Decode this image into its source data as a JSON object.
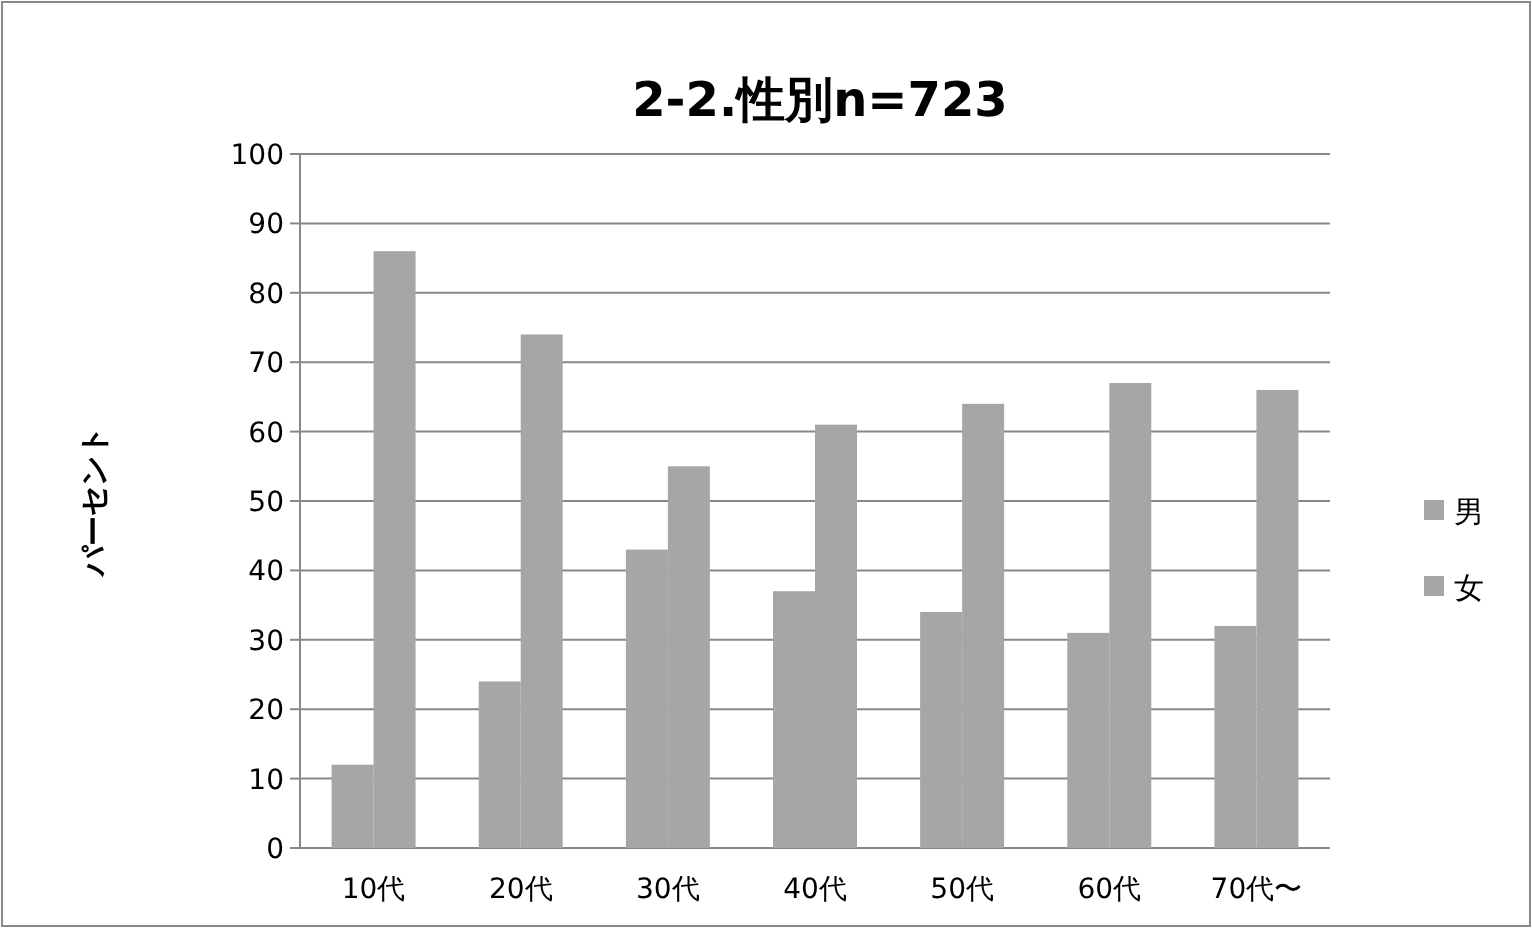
{
  "chart_data": {
    "type": "bar",
    "title": "2-2.性別n=723",
    "ylabel": "パーセント",
    "categories": [
      "10代",
      "20代",
      "30代",
      "40代",
      "50代",
      "60代",
      "70代〜"
    ],
    "series": [
      {
        "name": "男",
        "color": "#a6a6a6",
        "values": [
          12,
          24,
          43,
          37,
          34,
          31,
          32
        ]
      },
      {
        "name": "女",
        "color": "#a6a6a6",
        "values": [
          86,
          74,
          55,
          61,
          64,
          67,
          66
        ]
      }
    ],
    "ylim": [
      0,
      100
    ],
    "yticks": [
      0,
      10,
      20,
      30,
      40,
      50,
      60,
      70,
      80,
      90,
      100
    ],
    "grid": "y",
    "legend": "right"
  }
}
